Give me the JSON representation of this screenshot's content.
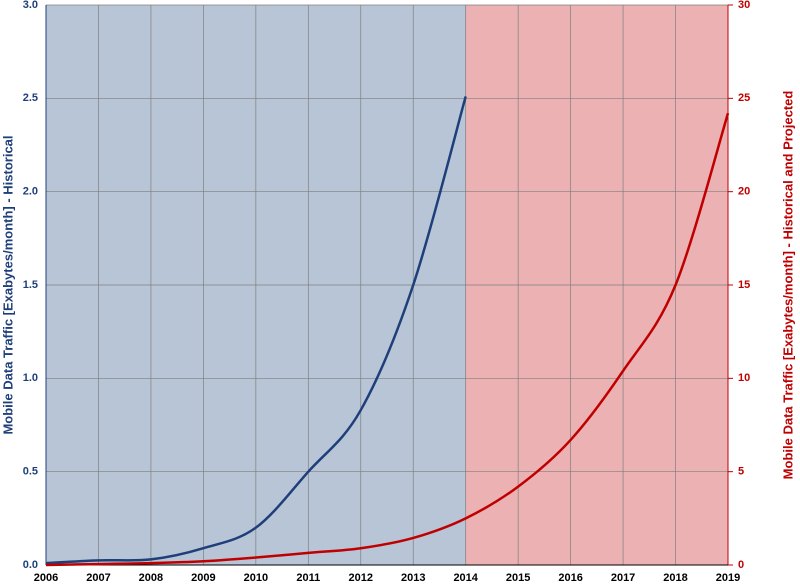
{
  "chart_data": {
    "type": "line",
    "x": [
      2006,
      2007,
      2008,
      2009,
      2010,
      2011,
      2012,
      2013,
      2014,
      2015,
      2016,
      2017,
      2018,
      2019
    ],
    "series": [
      {
        "color": "#1f3f7a",
        "values": [
          0.01,
          0.025,
          0.03,
          0.09,
          0.2,
          0.5,
          0.83,
          1.5,
          2.51,
          null,
          null,
          null,
          null,
          null
        ]
      },
      {
        "color": "#c00000",
        "axis": "y2",
        "values": [
          0,
          0.05,
          0.1,
          0.2,
          0.4,
          0.65,
          0.9,
          1.45,
          2.5,
          4.2,
          6.7,
          10.4,
          15,
          24.2
        ]
      }
    ],
    "regions": [
      {
        "x": [
          2006,
          2014
        ],
        "color": "#b8c5d6"
      },
      {
        "x": [
          2014,
          2019
        ],
        "color": "#ebb1b3"
      }
    ],
    "ylabel": "Mobile Data Traffic [Exabytes/month] - Historical",
    "y2label": "Mobile Data Traffic [Exabytes/month] - Historical and Projected",
    "xlim": [
      2006,
      2019
    ],
    "xticks": [
      2006,
      2007,
      2008,
      2009,
      2010,
      2011,
      2012,
      2013,
      2014,
      2015,
      2016,
      2017,
      2018,
      2019
    ],
    "ylim": [
      0,
      3
    ],
    "yticks": [
      {
        "value": 0,
        "label": "0.0"
      },
      0.5,
      {
        "value": 1,
        "label": "1.0"
      },
      1.5,
      {
        "value": 2,
        "label": "2.0"
      },
      2.5,
      {
        "value": 3,
        "label": "3.0"
      }
    ],
    "y2lim": [
      0,
      30
    ],
    "y2ticks": [
      0,
      5,
      10,
      15,
      20,
      25,
      30
    ],
    "grid": true
  }
}
